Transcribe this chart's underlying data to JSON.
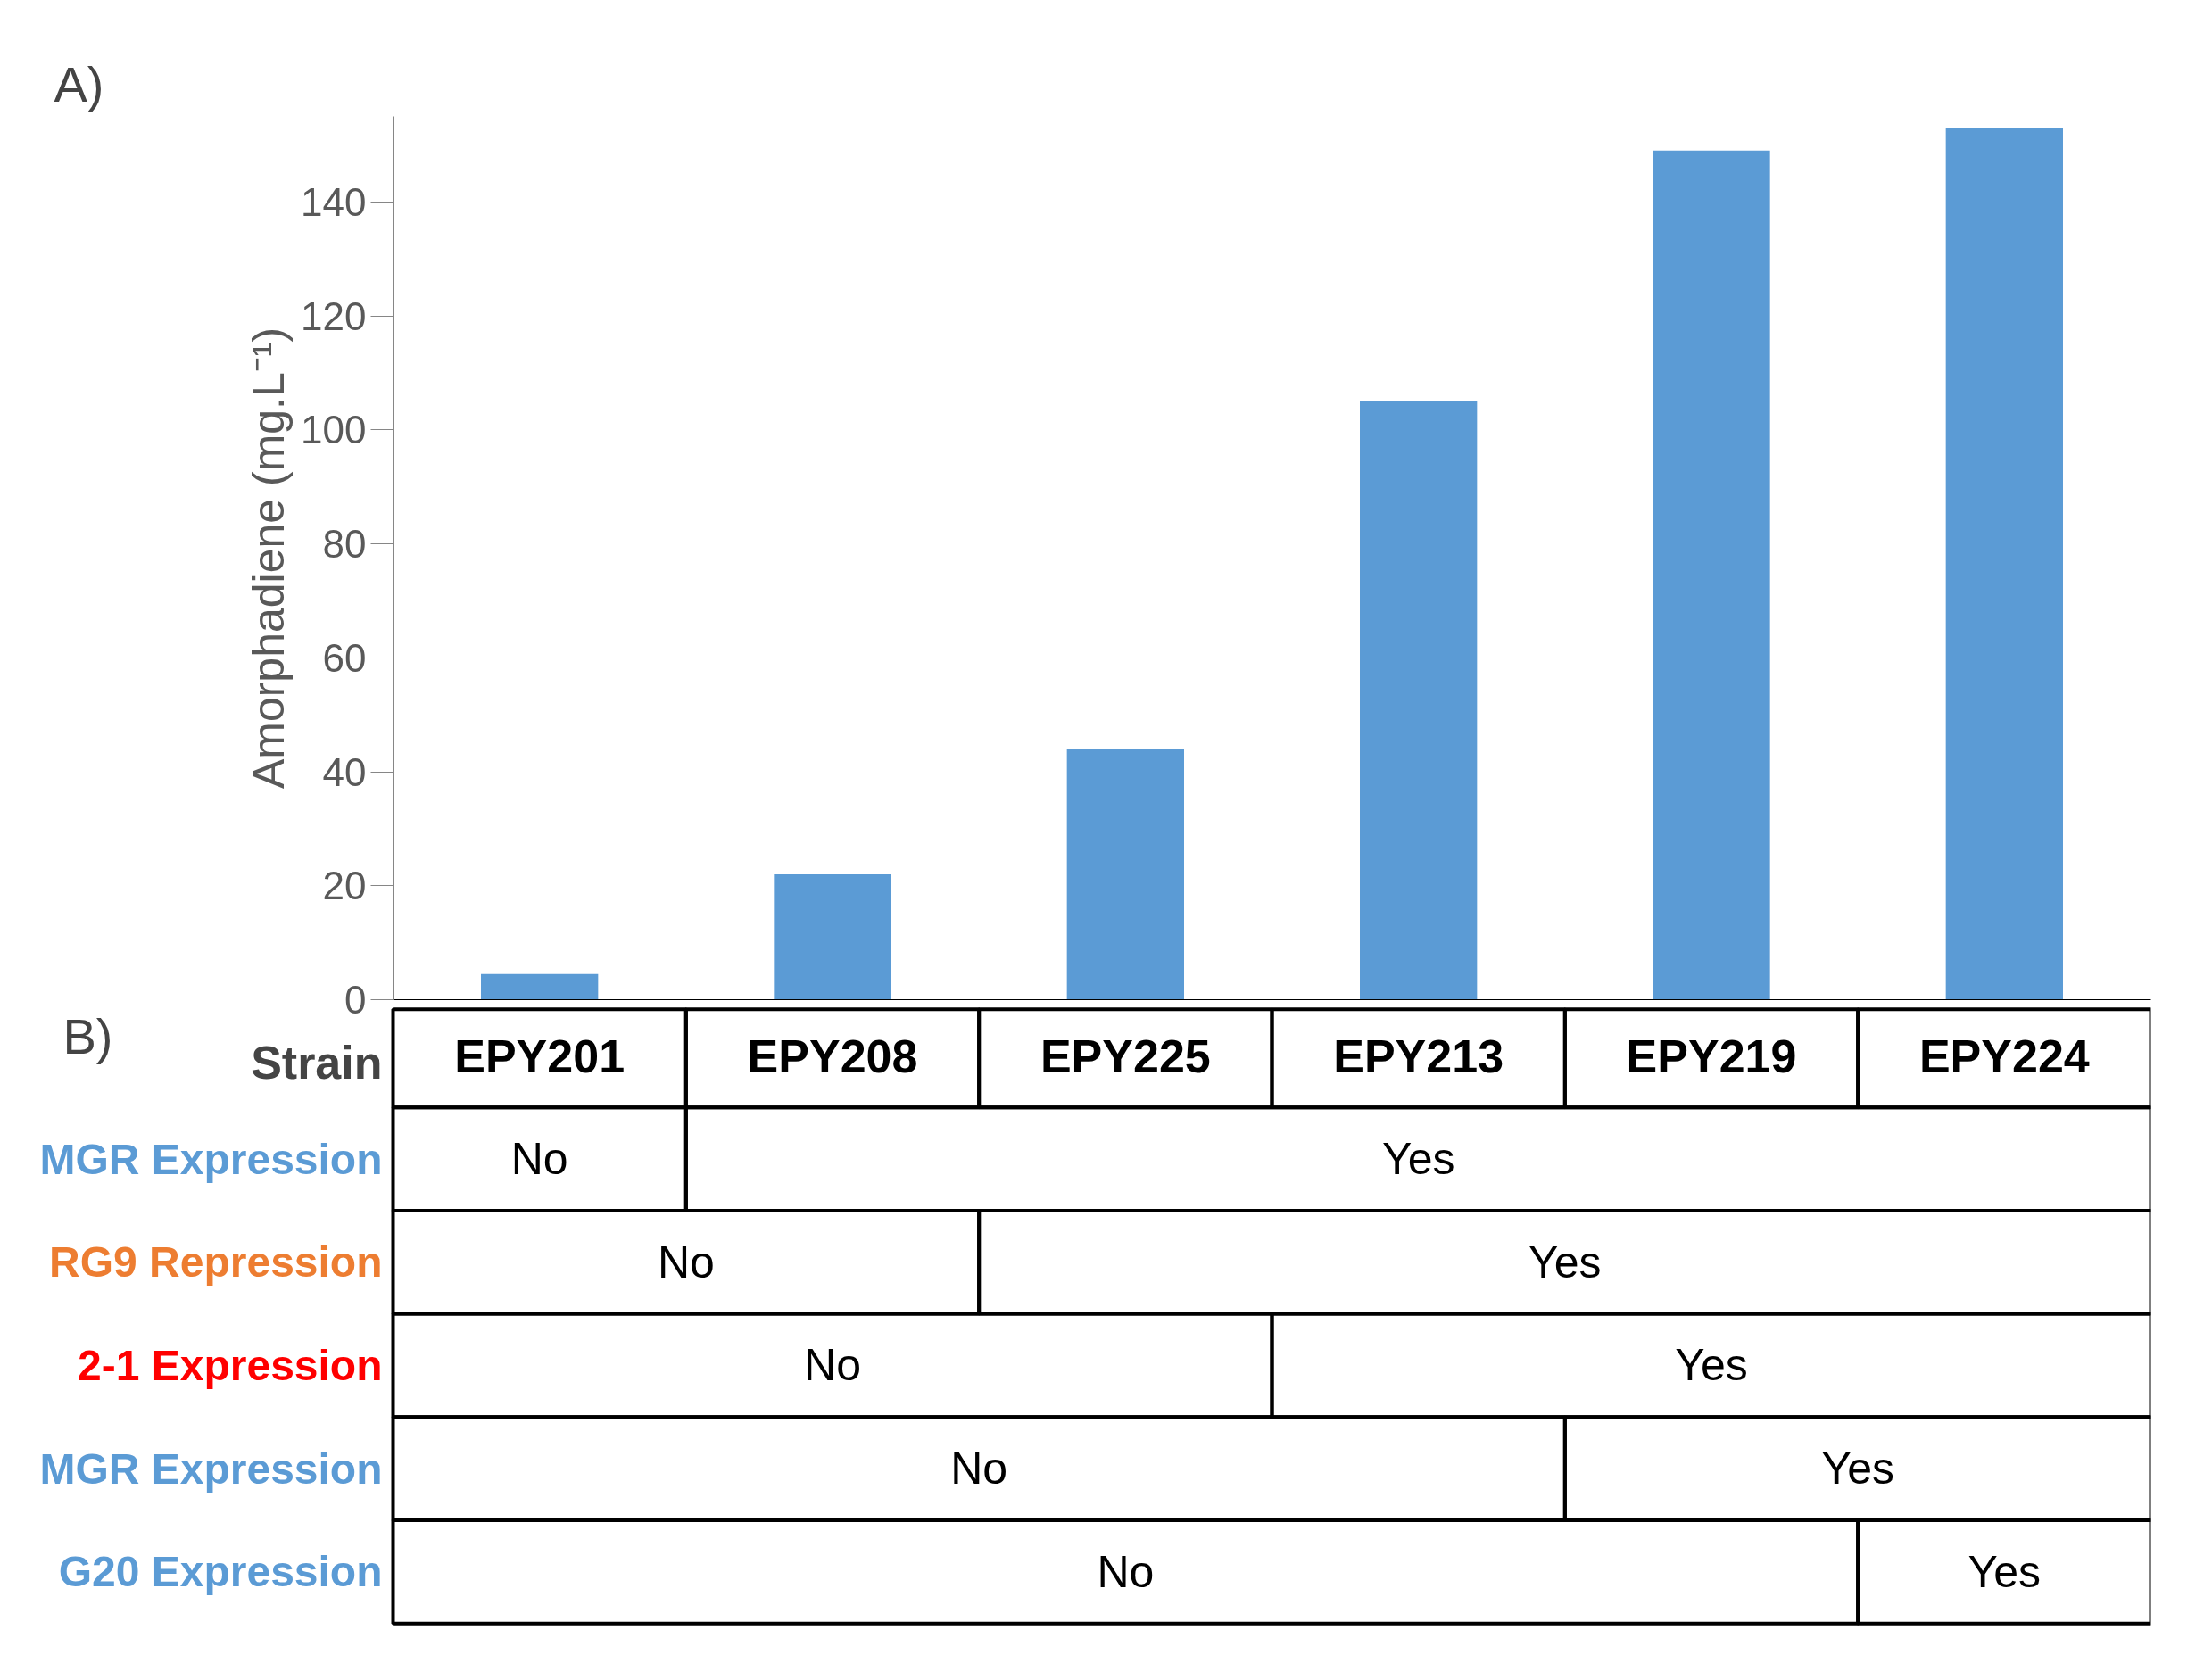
{
  "chart_data": {
    "type": "bar",
    "ylabel": "Amorphadiene (mg.L⁻¹)",
    "categories": [
      "EPY201",
      "EPY208",
      "EPY225",
      "EPY213",
      "EPY219",
      "EPY224"
    ],
    "values": [
      4.5,
      22,
      44,
      105,
      149,
      153
    ],
    "color": "#5b9bd5",
    "ylim": [
      0,
      155
    ],
    "yticks": [
      0,
      20,
      40,
      60,
      80,
      100,
      120,
      140
    ],
    "grid": false,
    "annotations": [
      "A)",
      "B)",
      "Strain",
      "MGR Expression",
      "No",
      "Yes",
      "RG9 Repression",
      "No",
      "Yes",
      "2-1 Expression",
      "No",
      "Yes",
      "MGR Expression",
      "No",
      "Yes",
      "G20 Expression",
      "No",
      "Yes"
    ]
  }
}
